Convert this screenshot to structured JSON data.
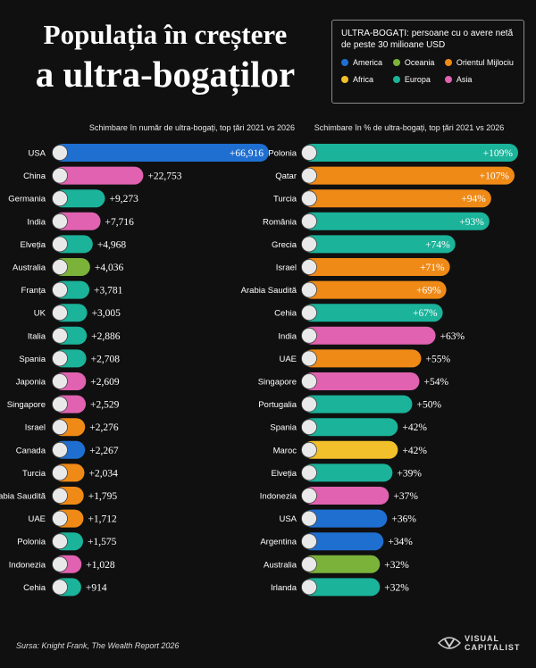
{
  "title": {
    "line1": "Populația în creștere",
    "line2": "a ultra-bogaților"
  },
  "legend": {
    "title_bold": "ULTRA-BOGAȚI:",
    "title_rest": " persoane cu o avere netă de peste 30 milioane USD",
    "items": [
      {
        "label": "America",
        "color": "#1f6fd1"
      },
      {
        "label": "Oceania",
        "color": "#7bb33a"
      },
      {
        "label": "Orientul Mijlociu",
        "color": "#ef8a17"
      },
      {
        "label": "Africa",
        "color": "#f2c02a"
      },
      {
        "label": "Europa",
        "color": "#1bb39a"
      },
      {
        "label": "Asia",
        "color": "#e062b0"
      }
    ]
  },
  "chart_data": [
    {
      "type": "bar",
      "subtitle": "Schimbare în număr de ultra-bogați, top țări 2021 vs 2026",
      "categories": [
        "USA",
        "China",
        "Germania",
        "India",
        "Elveția",
        "Australia",
        "Franța",
        "UK",
        "Italia",
        "Spania",
        "Japonia",
        "Singapore",
        "Israel",
        "Canada",
        "Turcia",
        "Arabia Saudită",
        "UAE",
        "Polonia",
        "Indonezia",
        "Cehia"
      ],
      "values": [
        66916,
        22753,
        9273,
        7716,
        4968,
        4036,
        3781,
        3005,
        2886,
        2708,
        2609,
        2529,
        2276,
        2267,
        2034,
        1795,
        1712,
        1575,
        1028,
        914
      ],
      "labels": [
        "+66,916",
        "+22,753",
        "+9,273",
        "+7,716",
        "+4,968",
        "+4,036",
        "+3,781",
        "+3,005",
        "+2,886",
        "+2,708",
        "+2,609",
        "+2,529",
        "+2,276",
        "+2,267",
        "+2,034",
        "+1,795",
        "+1,712",
        "+1,575",
        "+1,028",
        "+914"
      ],
      "regions": [
        "America",
        "Asia",
        "Europa",
        "Asia",
        "Europa",
        "Oceania",
        "Europa",
        "Europa",
        "Europa",
        "Europa",
        "Asia",
        "Asia",
        "Orientul Mijlociu",
        "America",
        "Orientul Mijlociu",
        "Orientul Mijlociu",
        "Orientul Mijlociu",
        "Europa",
        "Asia",
        "Europa"
      ]
    },
    {
      "type": "bar",
      "subtitle": "Schimbare în % de ultra-bogați, top țări 2021 vs 2026",
      "categories": [
        "Polonia",
        "Qatar",
        "Turcia",
        "România",
        "Grecia",
        "Israel",
        "Arabia Saudită",
        "Cehia",
        "India",
        "UAE",
        "Singapore",
        "Portugalia",
        "Spania",
        "Maroc",
        "Elveția",
        "Indonezia",
        "USA",
        "Argentina",
        "Australia",
        "Irlanda"
      ],
      "values": [
        109,
        107,
        94,
        93,
        74,
        71,
        69,
        67,
        63,
        55,
        54,
        50,
        42,
        42,
        39,
        37,
        36,
        34,
        32,
        32
      ],
      "labels": [
        "+109%",
        "+107%",
        "+94%",
        "+93%",
        "+74%",
        "+71%",
        "+69%",
        "+67%",
        "+63%",
        "+55%",
        "+54%",
        "+50%",
        "+42%",
        "+42%",
        "+39%",
        "+37%",
        "+36%",
        "+34%",
        "+32%",
        "+32%"
      ],
      "regions": [
        "Europa",
        "Orientul Mijlociu",
        "Orientul Mijlociu",
        "Europa",
        "Europa",
        "Orientul Mijlociu",
        "Orientul Mijlociu",
        "Europa",
        "Asia",
        "Orientul Mijlociu",
        "Asia",
        "Europa",
        "Europa",
        "Africa",
        "Europa",
        "Asia",
        "America",
        "America",
        "Oceania",
        "Europa"
      ]
    }
  ],
  "source": "Sursa: Knight Frank, The Wealth Report 2026",
  "brand": {
    "line1": "VISUAL",
    "line2": "CAPITALIST"
  }
}
